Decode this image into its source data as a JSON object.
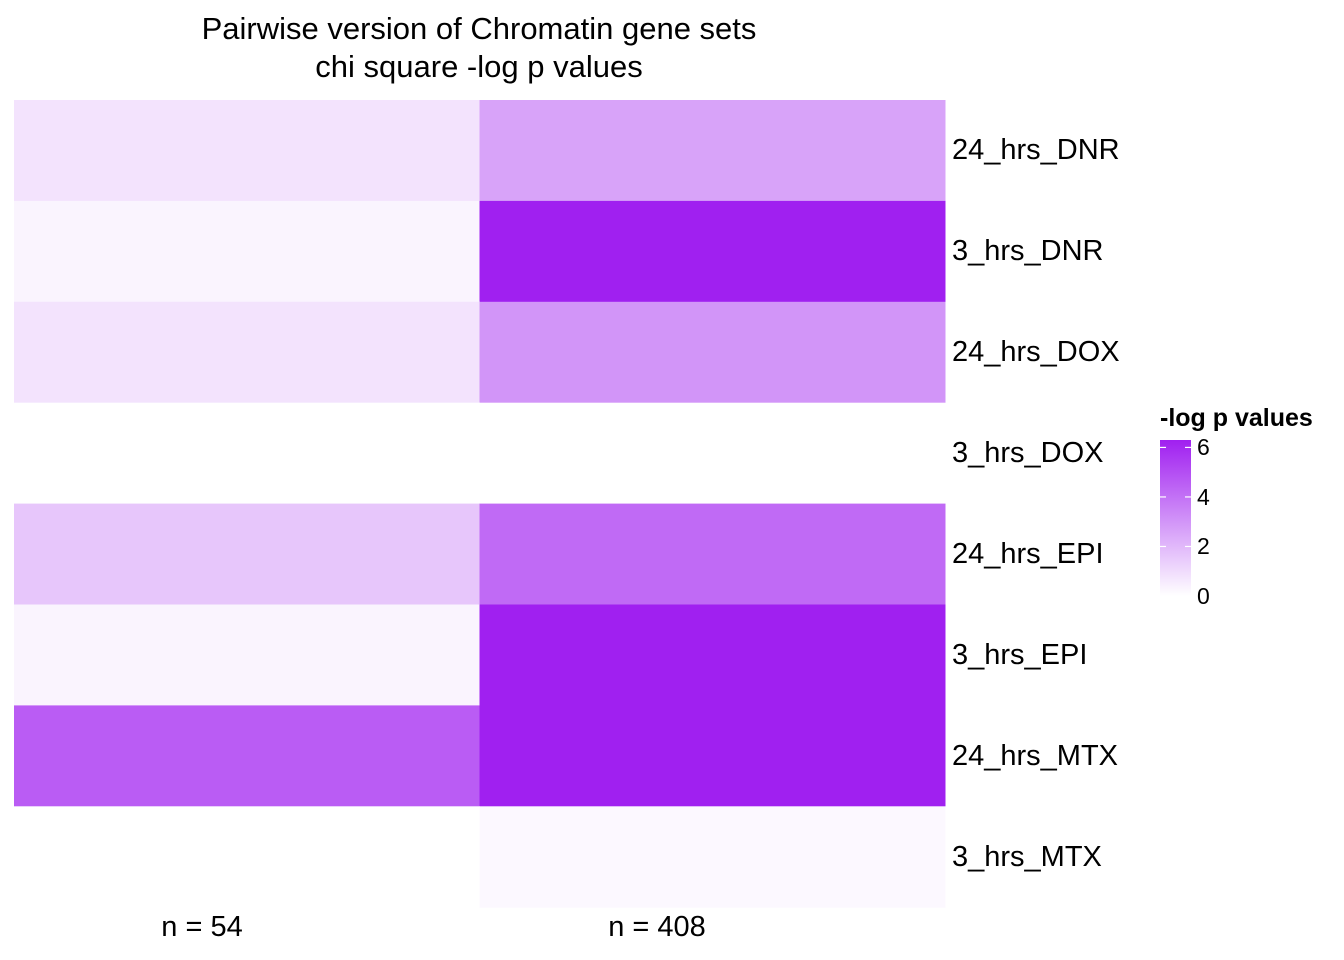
{
  "chart_data": {
    "type": "heatmap",
    "title": "Pairwise version of Chromatin gene sets",
    "subtitle": "chi square -log p values",
    "columns": [
      "n = 54",
      "n = 408"
    ],
    "rows": [
      "24_hrs_DNR",
      "3_hrs_DNR",
      "24_hrs_DOX",
      "3_hrs_DOX",
      "24_hrs_EPI",
      "3_hrs_EPI",
      "24_hrs_MTX",
      "3_hrs_MTX"
    ],
    "values": [
      [
        0.8,
        2.6
      ],
      [
        0.3,
        6.3
      ],
      [
        0.8,
        3.0
      ],
      [
        0.0,
        0.0
      ],
      [
        1.6,
        4.2
      ],
      [
        0.3,
        6.3
      ],
      [
        4.6,
        6.3
      ],
      [
        0.0,
        0.2
      ]
    ],
    "legend": {
      "title": "-log p values",
      "ticks": [
        0,
        2,
        4,
        6
      ],
      "range": [
        0,
        6.3
      ],
      "low_color": "#ffffff",
      "high_color": "#a020f0"
    },
    "grid": false
  }
}
